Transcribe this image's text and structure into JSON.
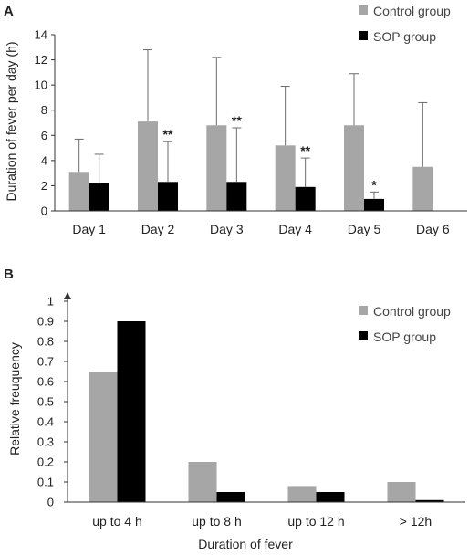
{
  "chart_data": [
    {
      "panel": "A",
      "type": "bar",
      "categories": [
        "Day 1",
        "Day 2",
        "Day 3",
        "Day 4",
        "Day 5",
        "Day 6"
      ],
      "ylabel": "Duration of fever per day (h)",
      "xlabel": "",
      "ylim": [
        0,
        14
      ],
      "yticks": [
        0,
        2,
        4,
        6,
        8,
        10,
        12,
        14
      ],
      "grid": false,
      "legend": "top-right",
      "series": [
        {
          "name": "Control group",
          "color": "#a6a6a6",
          "values": [
            3.1,
            7.1,
            6.8,
            5.2,
            6.8,
            3.5
          ],
          "error": [
            2.6,
            5.7,
            5.4,
            4.7,
            4.1,
            5.1
          ]
        },
        {
          "name": "SOP group",
          "color": "#000000",
          "values": [
            2.2,
            2.3,
            2.3,
            1.9,
            0.95,
            null
          ],
          "error": [
            2.3,
            3.2,
            4.3,
            2.3,
            0.55,
            null
          ]
        }
      ],
      "annotations": [
        {
          "category": "Day 2",
          "series": "SOP group",
          "text": "**"
        },
        {
          "category": "Day 3",
          "series": "SOP group",
          "text": "**"
        },
        {
          "category": "Day 4",
          "series": "SOP group",
          "text": "**"
        },
        {
          "category": "Day 5",
          "series": "SOP group",
          "text": "*"
        }
      ]
    },
    {
      "panel": "B",
      "type": "bar",
      "categories": [
        "up to 4 h",
        "up to 8 h",
        "up to 12 h",
        "> 12h"
      ],
      "xlabel": "Duration of fever",
      "ylabel": "Relative freuquency",
      "ylim": [
        0,
        1
      ],
      "yticks": [
        0,
        0.1,
        0.2,
        0.3,
        0.4,
        0.5,
        0.6,
        0.7,
        0.8,
        0.9,
        1
      ],
      "grid": false,
      "legend": "top-right",
      "series": [
        {
          "name": "Control group",
          "color": "#a6a6a6",
          "values": [
            0.65,
            0.2,
            0.08,
            0.1
          ]
        },
        {
          "name": "SOP group",
          "color": "#000000",
          "values": [
            0.9,
            0.05,
            0.05,
            0.01
          ]
        }
      ]
    }
  ]
}
